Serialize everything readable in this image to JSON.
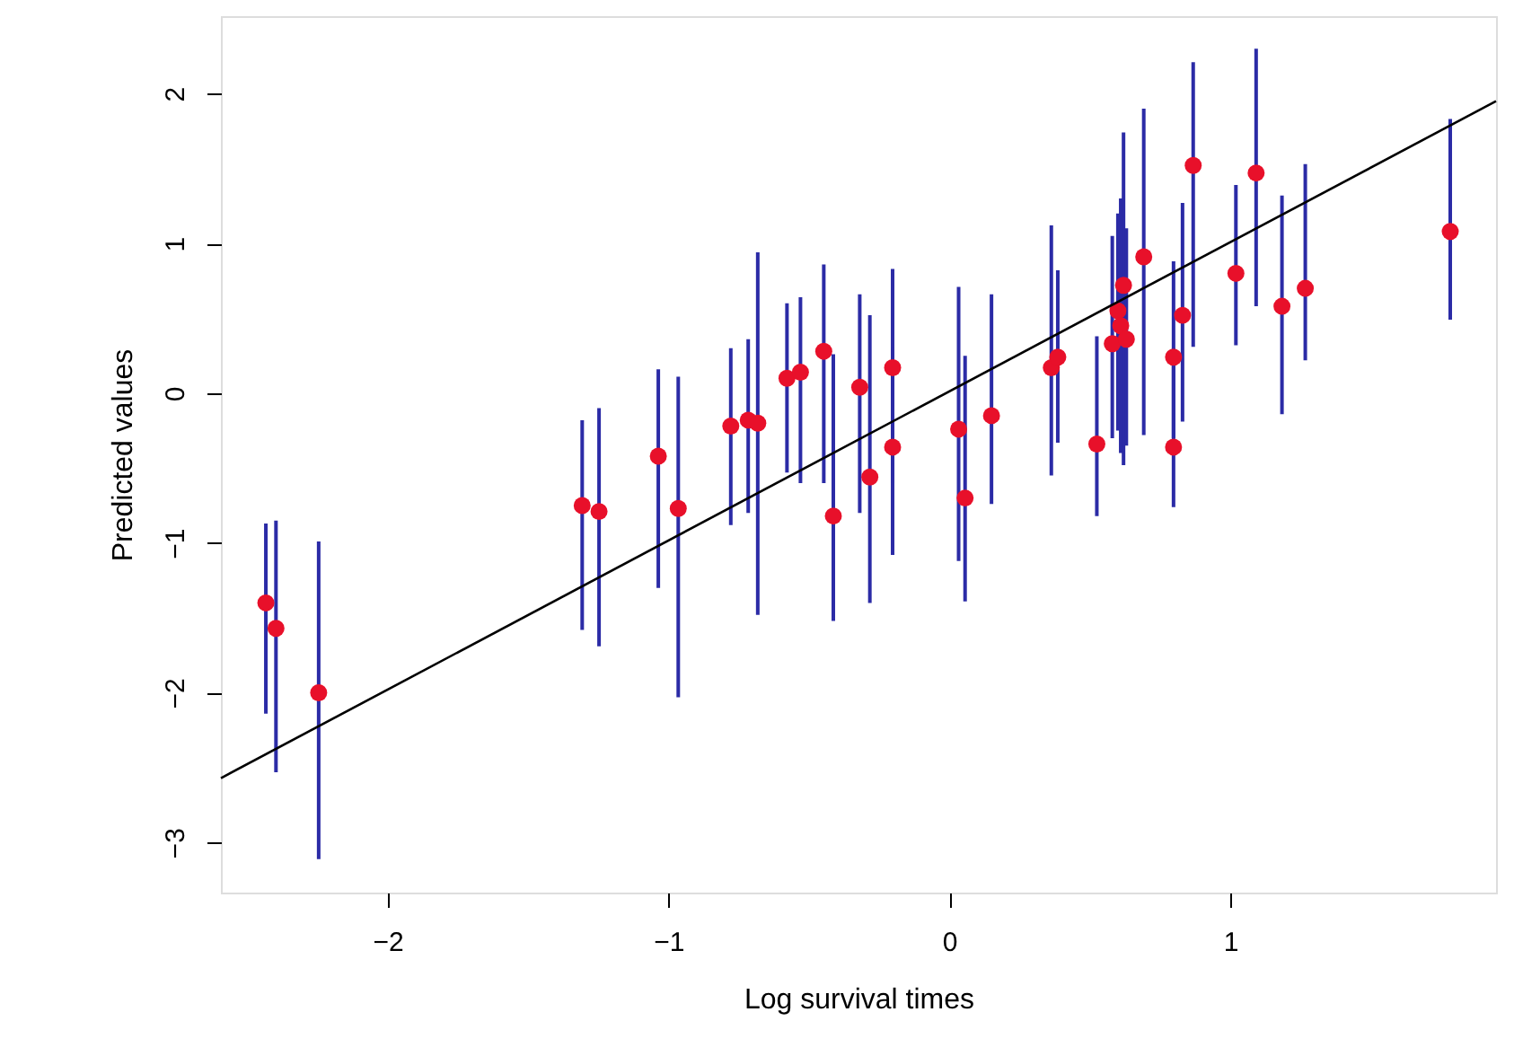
{
  "chart_data": {
    "type": "scatter",
    "xlabel": "Log survival times",
    "ylabel": "Predicted values",
    "xlim": [
      -2.593,
      1.946
    ],
    "ylim": [
      -3.334,
      2.517
    ],
    "xticks": [
      -2,
      -1,
      0,
      1
    ],
    "yticks": [
      -3,
      -2,
      -1,
      0,
      1,
      2
    ],
    "grid": false,
    "series": [
      {
        "marker": "circle",
        "color": "#e8102a",
        "x": [
          -2.433,
          -2.397,
          -2.245,
          -1.307,
          -1.247,
          -1.036,
          -0.965,
          -0.778,
          -0.716,
          -0.682,
          -0.578,
          -0.53,
          -0.447,
          -0.413,
          -0.319,
          -0.283,
          -0.202,
          -0.202,
          0.033,
          0.056,
          0.15,
          0.363,
          0.386,
          0.525,
          0.58,
          0.6,
          0.61,
          0.62,
          0.63,
          0.692,
          0.798,
          0.798,
          0.83,
          0.868,
          1.02,
          1.092,
          1.184,
          1.267,
          1.783
        ],
        "values": [
          -1.4,
          -1.57,
          -2.0,
          -0.75,
          -0.79,
          -0.42,
          -0.77,
          -0.22,
          -0.18,
          -0.2,
          0.1,
          0.14,
          0.28,
          -0.82,
          0.04,
          -0.56,
          0.17,
          -0.36,
          -0.24,
          -0.7,
          -0.15,
          0.17,
          0.24,
          -0.34,
          0.33,
          0.55,
          0.45,
          0.72,
          0.36,
          0.91,
          0.24,
          -0.36,
          0.52,
          1.52,
          0.8,
          1.47,
          0.58,
          0.7,
          1.08
        ],
        "errors": [
          [
            -2.14,
            -0.87
          ],
          [
            -2.53,
            -0.85
          ],
          [
            -3.11,
            -0.99
          ],
          [
            -1.58,
            -0.18
          ],
          [
            -1.69,
            -0.1
          ],
          [
            -1.3,
            0.16
          ],
          [
            -2.03,
            0.11
          ],
          [
            -0.88,
            0.3
          ],
          [
            -0.8,
            0.36
          ],
          [
            -1.48,
            0.94
          ],
          [
            -0.53,
            0.6
          ],
          [
            -0.6,
            0.64
          ],
          [
            -0.6,
            0.86
          ],
          [
            -1.52,
            0.26
          ],
          [
            -0.8,
            0.66
          ],
          [
            -1.4,
            0.52
          ],
          [
            -0.6,
            0.83
          ],
          [
            -1.08,
            0.3
          ],
          [
            -1.12,
            0.71
          ],
          [
            -1.39,
            0.25
          ],
          [
            -0.74,
            0.66
          ],
          [
            -0.55,
            1.12
          ],
          [
            -0.33,
            0.82
          ],
          [
            -0.82,
            0.38
          ],
          [
            -0.3,
            1.05
          ],
          [
            -0.25,
            1.2
          ],
          [
            -0.4,
            1.3
          ],
          [
            -0.48,
            1.74
          ],
          [
            -0.35,
            1.1
          ],
          [
            -0.28,
            1.9
          ],
          [
            -0.3,
            0.88
          ],
          [
            -0.76,
            0.3
          ],
          [
            -0.19,
            1.27
          ],
          [
            0.31,
            2.21
          ],
          [
            0.32,
            1.39
          ],
          [
            0.58,
            2.3
          ],
          [
            -0.14,
            1.32
          ],
          [
            0.22,
            1.53
          ],
          [
            0.49,
            1.83
          ]
        ]
      },
      {
        "type": "line",
        "marker": "none",
        "color": "#000000",
        "x": [
          -2.593,
          1.946
        ],
        "values": [
          -2.57,
          1.95
        ]
      }
    ]
  }
}
